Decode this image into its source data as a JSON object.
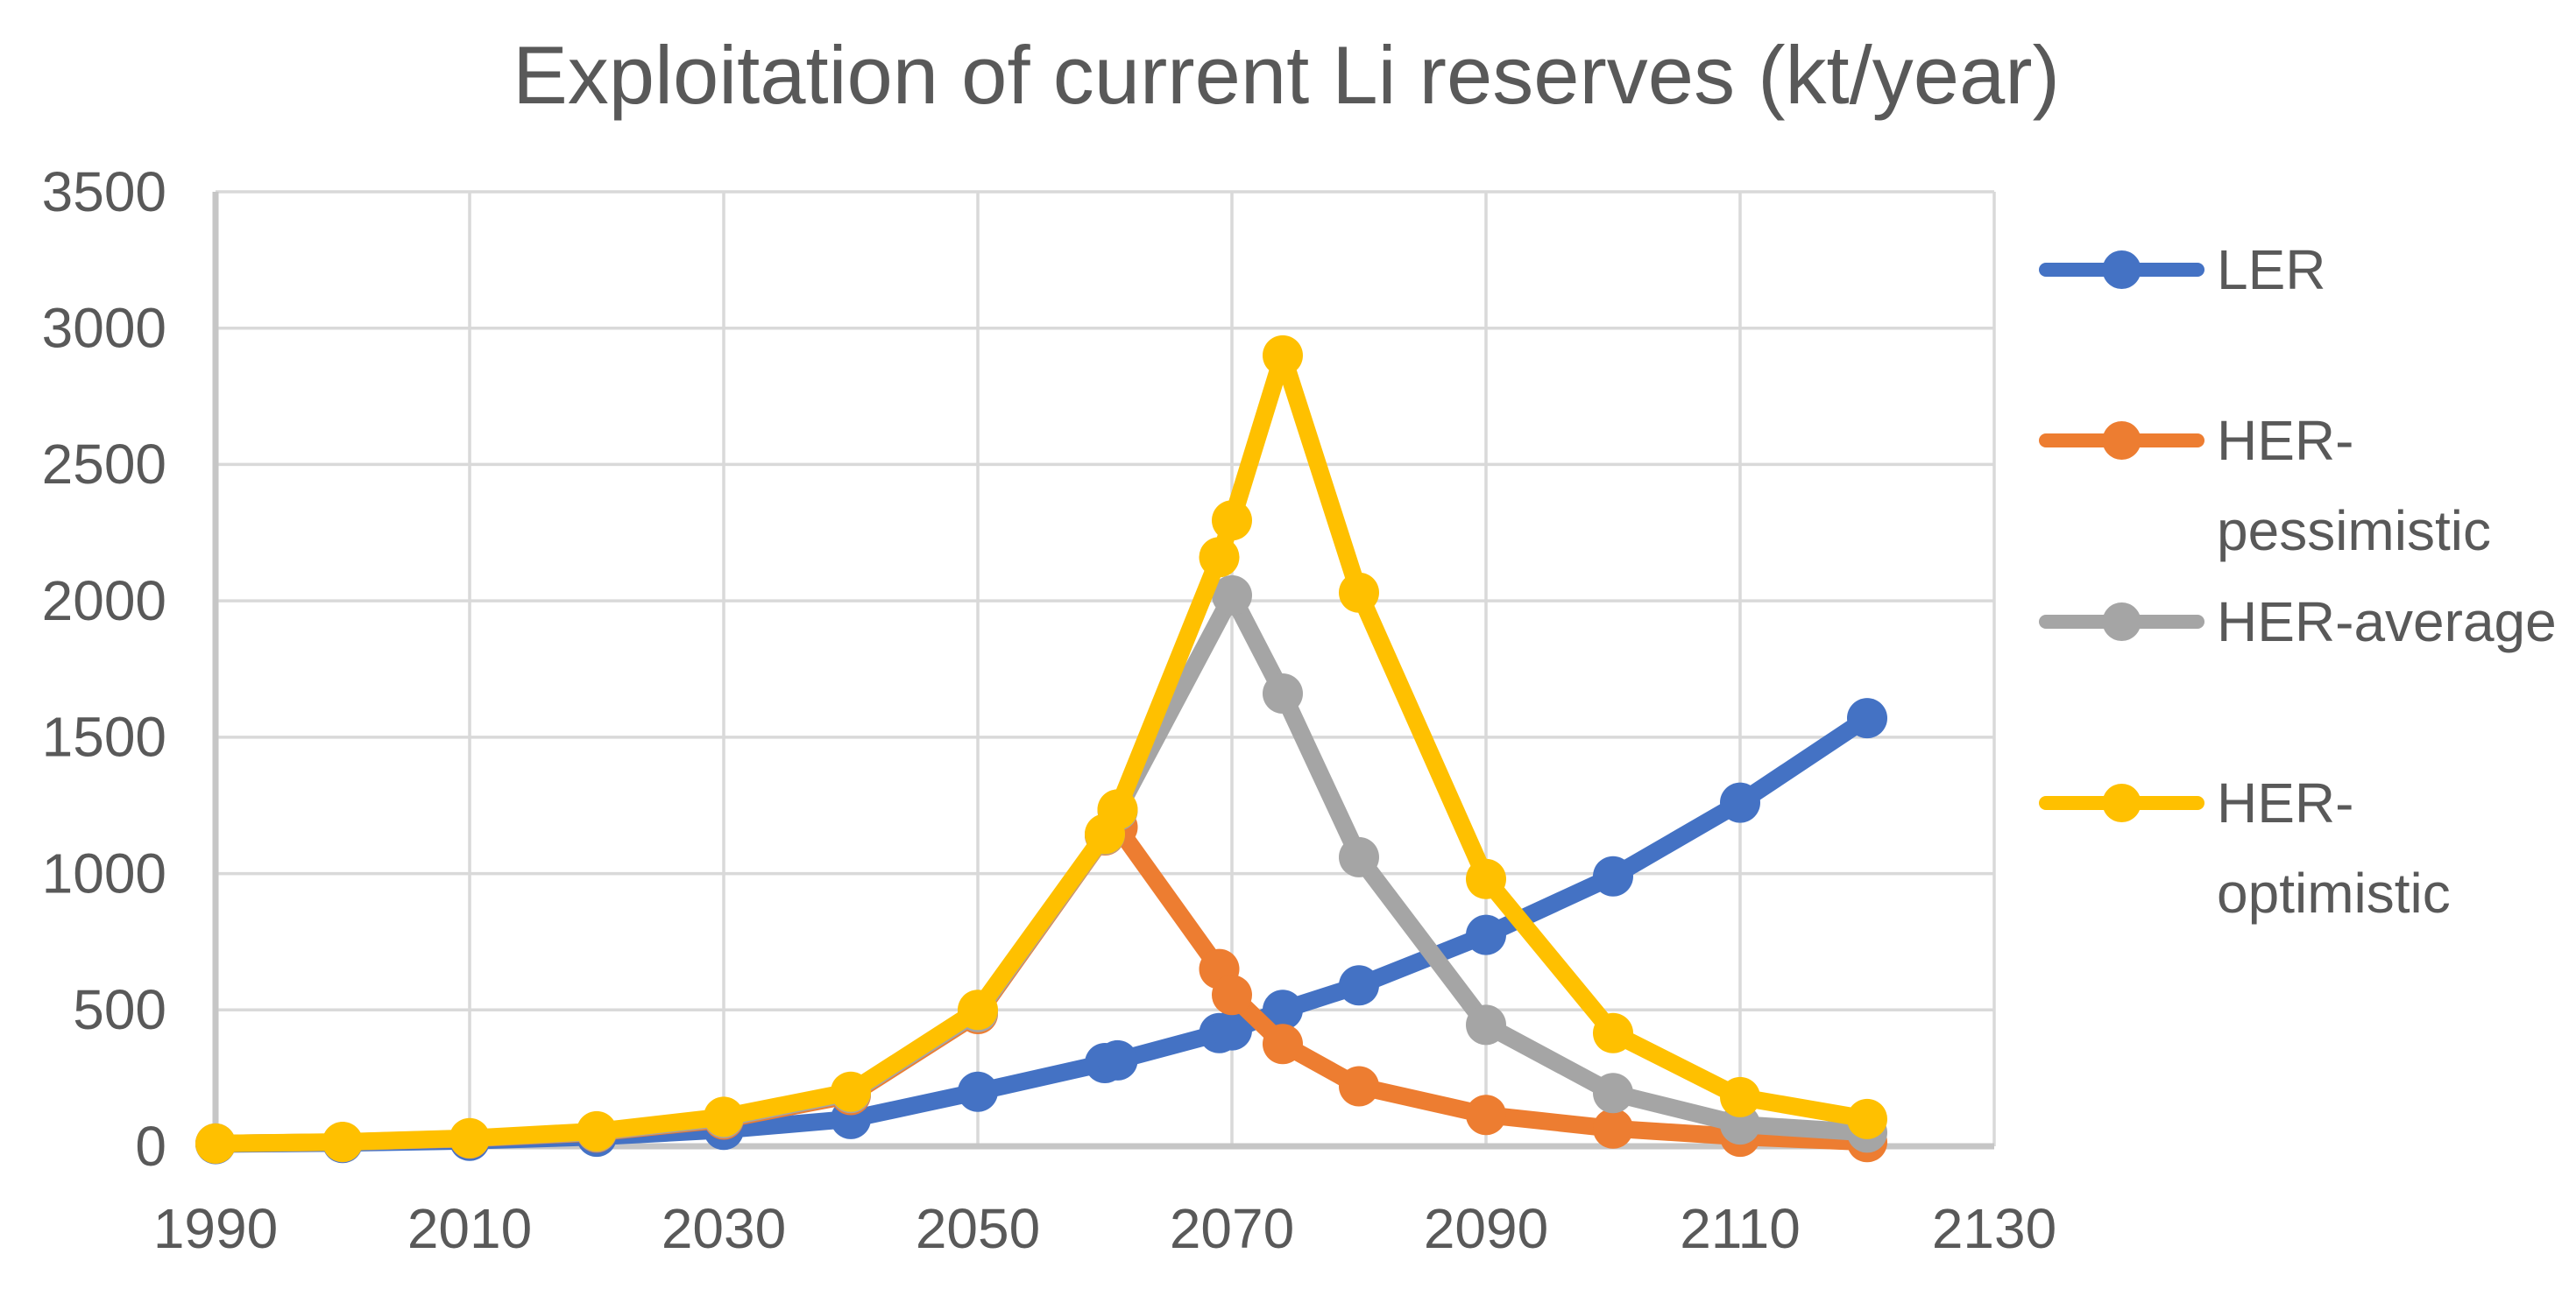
{
  "title": "Exploitation of current Li reserves (kt/year)",
  "colors": {
    "background": "#FFFFFF",
    "title_text": "#595959",
    "tick_text": "#595959",
    "legend_text": "#595959",
    "gridline": "#D9D9D9",
    "axis_line": "#C6C6C6",
    "series_ler": "#4472C4",
    "series_her_pessimistic": "#ED7D31",
    "series_her_average": "#A5A5A5",
    "series_her_optimistic": "#FFC000"
  },
  "chart_data": {
    "type": "line",
    "title": "Exploitation of current Li reserves (kt/year)",
    "xlabel": "",
    "ylabel": "",
    "grid": true,
    "legend_position": "right",
    "x_axis": {
      "min": 1990,
      "max": 2130,
      "tick_step": 20,
      "ticks": [
        1990,
        2010,
        2030,
        2050,
        2070,
        2090,
        2110,
        2130
      ]
    },
    "y_axis": {
      "min": 0,
      "max": 3500,
      "tick_step": 500,
      "ticks": [
        0,
        500,
        1000,
        1500,
        2000,
        2500,
        3000,
        3500
      ]
    },
    "series": [
      {
        "name": "LER",
        "legend_lines": [
          "LER"
        ],
        "color": "#4472C4",
        "points": [
          [
            1990,
            8
          ],
          [
            2000,
            12
          ],
          [
            2010,
            20
          ],
          [
            2020,
            35
          ],
          [
            2030,
            60
          ],
          [
            2040,
            100
          ],
          [
            2050,
            200
          ],
          [
            2060,
            305
          ],
          [
            2061,
            315
          ],
          [
            2069,
            415
          ],
          [
            2070,
            425
          ],
          [
            2074,
            500
          ],
          [
            2080,
            590
          ],
          [
            2090,
            775
          ],
          [
            2100,
            990
          ],
          [
            2110,
            1260
          ],
          [
            2120,
            1570
          ]
        ]
      },
      {
        "name": "HER-pessimistic",
        "legend_lines": [
          "HER-",
          "pessimistic"
        ],
        "color": "#ED7D31",
        "points": [
          [
            1990,
            10
          ],
          [
            2000,
            15
          ],
          [
            2010,
            28
          ],
          [
            2020,
            50
          ],
          [
            2030,
            98
          ],
          [
            2040,
            188
          ],
          [
            2050,
            485
          ],
          [
            2060,
            1140
          ],
          [
            2061,
            1170
          ],
          [
            2069,
            650
          ],
          [
            2070,
            555
          ],
          [
            2074,
            375
          ],
          [
            2080,
            220
          ],
          [
            2090,
            115
          ],
          [
            2100,
            65
          ],
          [
            2110,
            35
          ],
          [
            2120,
            15
          ]
        ]
      },
      {
        "name": "HER-average",
        "legend_lines": [
          "HER-average"
        ],
        "color": "#A5A5A5",
        "points": [
          [
            1990,
            10
          ],
          [
            2000,
            15
          ],
          [
            2010,
            29
          ],
          [
            2020,
            52
          ],
          [
            2030,
            103
          ],
          [
            2040,
            195
          ],
          [
            2050,
            492
          ],
          [
            2060,
            1142
          ],
          [
            2061,
            1230
          ],
          [
            2070,
            2020
          ],
          [
            2074,
            1660
          ],
          [
            2080,
            1060
          ],
          [
            2090,
            445
          ],
          [
            2100,
            195
          ],
          [
            2110,
            80
          ],
          [
            2120,
            50
          ]
        ]
      },
      {
        "name": "HER-optimistic",
        "legend_lines": [
          "HER-",
          "optimistic"
        ],
        "color": "#FFC000",
        "points": [
          [
            1990,
            10
          ],
          [
            2000,
            16
          ],
          [
            2010,
            30
          ],
          [
            2020,
            55
          ],
          [
            2030,
            108
          ],
          [
            2040,
            200
          ],
          [
            2050,
            500
          ],
          [
            2060,
            1145
          ],
          [
            2061,
            1235
          ],
          [
            2069,
            2160
          ],
          [
            2070,
            2295
          ],
          [
            2074,
            2900
          ],
          [
            2080,
            2030
          ],
          [
            2090,
            980
          ],
          [
            2100,
            415
          ],
          [
            2110,
            180
          ],
          [
            2120,
            100
          ]
        ]
      }
    ]
  }
}
